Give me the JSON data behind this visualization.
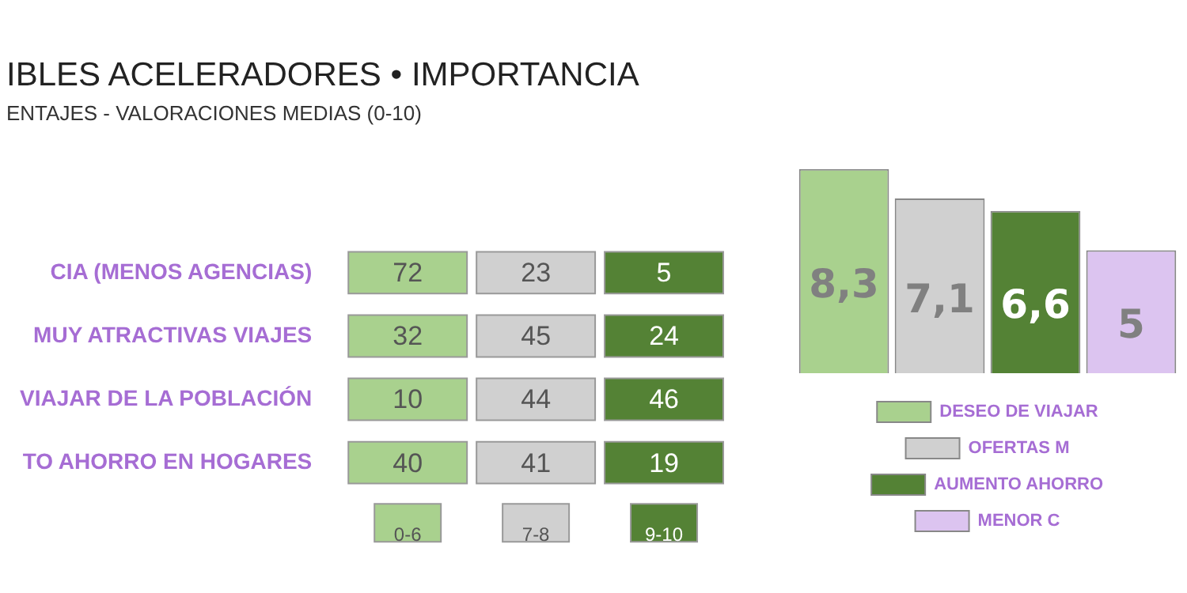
{
  "chart_data": [
    {
      "type": "heatmap",
      "title": "IBLES ACELERADORES • IMPORTANCIA",
      "subtitle": "ENTAJES - VALORACIONES MEDIAS (0-10)",
      "categories": [
        "0-6",
        "7-8",
        "9-10"
      ],
      "y_categories": [
        "CIA (MENOS AGENCIAS)",
        "MUY ATRACTIVAS VIAJES",
        "VIAJAR DE LA POBLACIÓN",
        "TO AHORRO EN HOGARES"
      ],
      "colors": [
        "#a9d18e",
        "#d0d0d0",
        "#548235"
      ],
      "cells": [
        [
          72,
          23,
          5
        ],
        [
          32,
          45,
          24
        ],
        [
          10,
          44,
          46
        ],
        [
          40,
          41,
          19
        ]
      ],
      "data_labels": true
    },
    {
      "type": "bar",
      "categories": [
        null
      ],
      "series": [
        {
          "name": "DESEO DE VIAJAR",
          "color": "#a9d18e",
          "values": [
            8.3
          ],
          "value_labels": [
            "8,3"
          ]
        },
        {
          "name": "OFERTAS M",
          "color": "#d0d0d0",
          "values": [
            7.1
          ],
          "value_labels": [
            "7,1"
          ]
        },
        {
          "name": "AUMENTO AHORRO",
          "color": "#548235",
          "values": [
            6.6
          ],
          "value_labels": [
            "6,6"
          ]
        },
        {
          "name": "MENOR C",
          "color": "#dcc4f0",
          "values": [
            5
          ],
          "value_labels": [
            "5"
          ]
        }
      ],
      "legend": "bottom",
      "tick_labels": false
    }
  ]
}
